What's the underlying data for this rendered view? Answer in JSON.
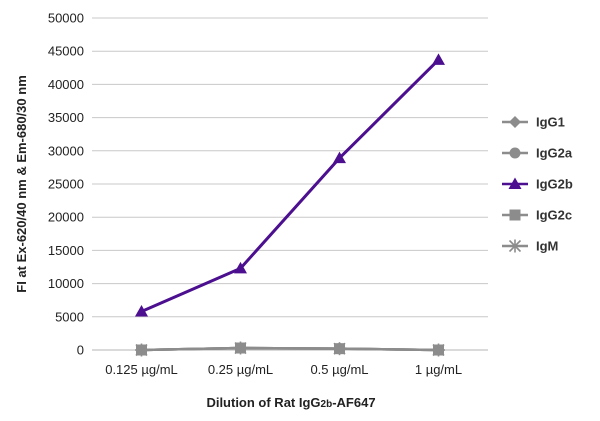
{
  "chart_data": {
    "type": "line",
    "categories": [
      "0.125 µg/mL",
      "0.25 µg/mL",
      "0.5 µg/mL",
      "1 µg/mL"
    ],
    "xlabel": {
      "prefix": "Dilution of Rat IgG",
      "subscript": "2b",
      "suffix": "-AF647"
    },
    "ylabel": "FI at Ex-620/40 nm & Em-680/30 nm",
    "ylim": [
      0,
      50000
    ],
    "yticks": [
      0,
      5000,
      10000,
      15000,
      20000,
      25000,
      30000,
      35000,
      40000,
      45000,
      50000
    ],
    "grid": true,
    "legend_position": "right",
    "series": [
      {
        "name": "IgG1",
        "values": [
          0,
          300,
          200,
          0
        ],
        "color": "#8c8c8c",
        "marker": "diamond"
      },
      {
        "name": "IgG2a",
        "values": [
          0,
          300,
          200,
          0
        ],
        "color": "#8c8c8c",
        "marker": "circle"
      },
      {
        "name": "IgG2b",
        "values": [
          5800,
          12300,
          28900,
          43700
        ],
        "color": "#4b0f8f",
        "marker": "triangle"
      },
      {
        "name": "IgG2c",
        "values": [
          0,
          300,
          200,
          0
        ],
        "color": "#8c8c8c",
        "marker": "square"
      },
      {
        "name": "IgM",
        "values": [
          0,
          300,
          200,
          0
        ],
        "color": "#8c8c8c",
        "marker": "star"
      }
    ]
  }
}
